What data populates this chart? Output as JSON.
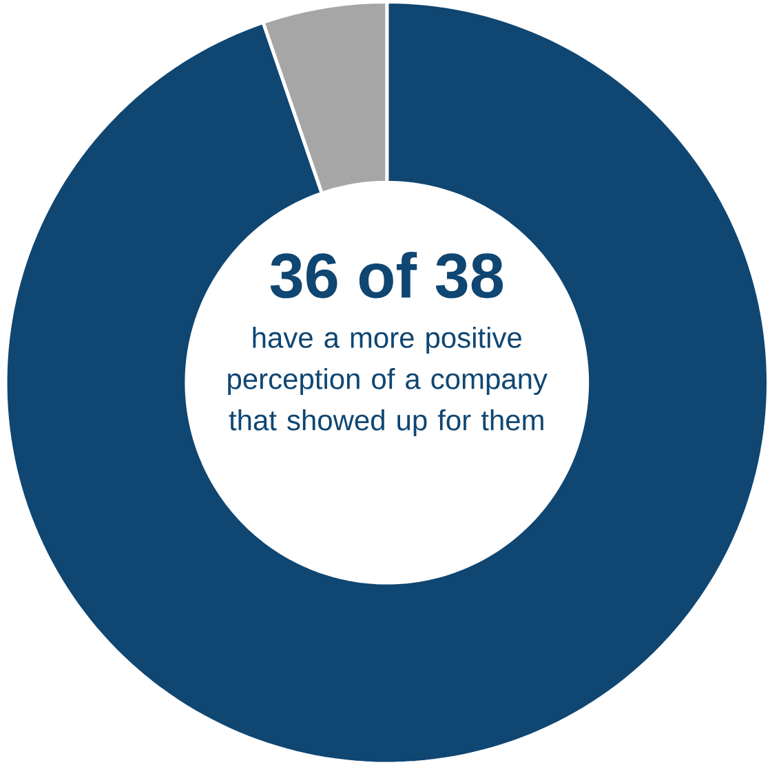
{
  "chart_data": {
    "type": "donut",
    "title": "36 of 38",
    "subtitle": "have a more positive perception of a company that showed up for them",
    "categories": [
      null,
      null
    ],
    "values": [
      94.74,
      5.26
    ],
    "colors": [
      "#0f4672",
      "#a6a6a6"
    ]
  }
}
